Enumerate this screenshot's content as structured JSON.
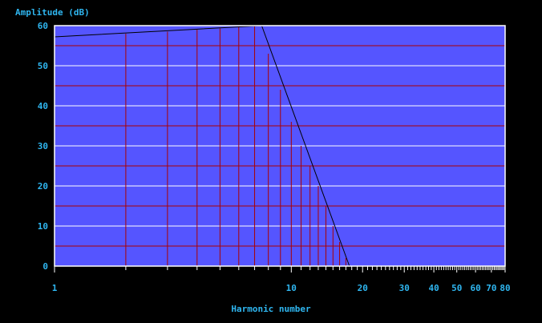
{
  "chart_data": {
    "type": "line",
    "ylabel": "Amplitude (dB)",
    "xlabel": "Harmonic number",
    "x_scale": "log",
    "xlim": [
      1,
      80
    ],
    "ylim": [
      0,
      60
    ],
    "y_ticks": [
      0,
      10,
      20,
      30,
      40,
      50,
      60
    ],
    "x_tick_labels": [
      {
        "value": 1,
        "label": "1"
      },
      {
        "value": 10,
        "label": "10"
      },
      {
        "value": 20,
        "label": "20"
      },
      {
        "value": 30,
        "label": "30"
      },
      {
        "value": 40,
        "label": "40"
      },
      {
        "value": 50,
        "label": "50"
      },
      {
        "value": 60,
        "label": "60"
      },
      {
        "value": 70,
        "label": "70"
      },
      {
        "value": 80,
        "label": "80"
      }
    ],
    "grid": true,
    "harmonics": {
      "x": [
        2,
        3,
        4,
        5,
        6,
        7,
        8,
        9,
        10,
        11,
        12,
        13,
        14,
        15,
        16,
        17
      ],
      "y": [
        58,
        58.5,
        59,
        59.3,
        59.6,
        59.8,
        53,
        44,
        36,
        30,
        25,
        20,
        15,
        10,
        6,
        2
      ]
    },
    "envelope": {
      "x": [
        1,
        7.5,
        17.6
      ],
      "y": [
        57.2,
        60,
        0
      ]
    },
    "colors": {
      "background": "#000000",
      "plot_area": "#5555ff",
      "grid_major": "#ffffff",
      "grid_minor": "#aa0000",
      "harmonic_lines": "#aa0000",
      "envelope": "#000000",
      "text": "#2fb6f0"
    }
  }
}
